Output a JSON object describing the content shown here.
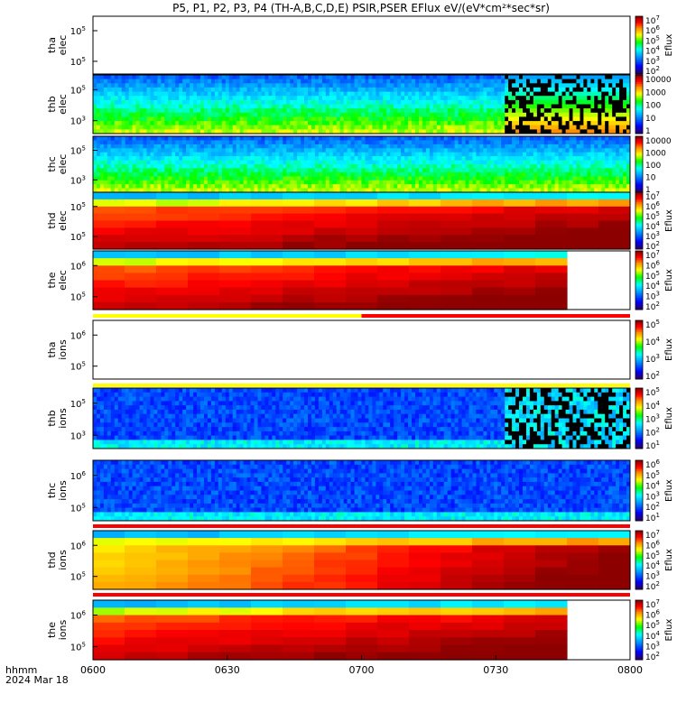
{
  "chart_data": {
    "type": "heatmap",
    "title": "P5, P1, P2, P3, P4 (TH-A,B,C,D,E) PSIR,PSER EFlux eV/(eV*cm²*sec*sr)",
    "x_ticks": [
      "0600",
      "0630",
      "0700",
      "0730",
      "0800"
    ],
    "x_range": [
      "06:00",
      "08:00"
    ],
    "date_label": "2024 Mar 18",
    "time_label": "hhmm",
    "colorbar_label": "Eflux",
    "panels": [
      {
        "id": "tha-elec",
        "ylabel": [
          "tha",
          "elec"
        ],
        "yticks": [
          {
            "mant": "10",
            "exp": "5"
          },
          {
            "mant": "10",
            "exp": "5"
          }
        ],
        "cbar": [
          {
            "mant": "10",
            "exp": "7"
          },
          {
            "mant": "10",
            "exp": "6"
          },
          {
            "mant": "10",
            "exp": "5"
          },
          {
            "mant": "10",
            "exp": "4"
          },
          {
            "mant": "10",
            "exp": "3"
          },
          {
            "mant": "10",
            "exp": "2"
          }
        ],
        "empty": true,
        "style": "fine"
      },
      {
        "id": "thb-elec",
        "ylabel": [
          "thb",
          "elec"
        ],
        "yticks": [
          {
            "mant": "10",
            "exp": "5"
          },
          {
            "mant": "10",
            "exp": "3"
          }
        ],
        "cbar": [
          {
            "mant": "10000",
            "exp": ""
          },
          {
            "mant": "1000",
            "exp": ""
          },
          {
            "mant": "100",
            "exp": ""
          },
          {
            "mant": "10",
            "exp": ""
          },
          {
            "mant": "1",
            "exp": ""
          }
        ],
        "style": "fine",
        "noisy_after": "07:32"
      },
      {
        "id": "thc-elec",
        "ylabel": [
          "thc",
          "elec"
        ],
        "yticks": [
          {
            "mant": "10",
            "exp": "5"
          },
          {
            "mant": "10",
            "exp": "3"
          }
        ],
        "cbar": [
          {
            "mant": "10000",
            "exp": ""
          },
          {
            "mant": "1000",
            "exp": ""
          },
          {
            "mant": "100",
            "exp": ""
          },
          {
            "mant": "10",
            "exp": ""
          },
          {
            "mant": "1",
            "exp": ""
          }
        ],
        "style": "fine"
      },
      {
        "id": "thd-elec",
        "ylabel": [
          "thd",
          "elec"
        ],
        "yticks": [
          {
            "mant": "10",
            "exp": "5"
          },
          {
            "mant": "10",
            "exp": "5"
          }
        ],
        "cbar": [
          {
            "mant": "10",
            "exp": "7"
          },
          {
            "mant": "10",
            "exp": "6"
          },
          {
            "mant": "10",
            "exp": "5"
          },
          {
            "mant": "10",
            "exp": "4"
          },
          {
            "mant": "10",
            "exp": "3"
          },
          {
            "mant": "10",
            "exp": "2"
          }
        ],
        "style": "coarse"
      },
      {
        "id": "the-elec",
        "ylabel": [
          "the",
          "elec"
        ],
        "yticks": [
          {
            "mant": "10",
            "exp": "6"
          },
          {
            "mant": "10",
            "exp": "5"
          }
        ],
        "cbar": [
          {
            "mant": "10",
            "exp": "7"
          },
          {
            "mant": "10",
            "exp": "6"
          },
          {
            "mant": "10",
            "exp": "5"
          },
          {
            "mant": "10",
            "exp": "4"
          },
          {
            "mant": "10",
            "exp": "3"
          },
          {
            "mant": "10",
            "exp": "2"
          }
        ],
        "style": "coarse",
        "data_until": "07:42"
      },
      {
        "id": "tha-ions",
        "ylabel": [
          "tha",
          "ions"
        ],
        "yticks": [
          {
            "mant": "10",
            "exp": "6"
          },
          {
            "mant": "10",
            "exp": "5"
          }
        ],
        "cbar": [
          {
            "mant": "10",
            "exp": "5"
          },
          {
            "mant": "10",
            "exp": "4"
          },
          {
            "mant": "10",
            "exp": "3"
          },
          {
            "mant": "10",
            "exp": "2"
          }
        ],
        "empty": true,
        "style": "fine"
      },
      {
        "id": "thb-ions",
        "ylabel": [
          "thb",
          "ions"
        ],
        "yticks": [
          {
            "mant": "10",
            "exp": "5"
          },
          {
            "mant": "10",
            "exp": "3"
          }
        ],
        "cbar": [
          {
            "mant": "10",
            "exp": "5"
          },
          {
            "mant": "10",
            "exp": "4"
          },
          {
            "mant": "10",
            "exp": "3"
          },
          {
            "mant": "10",
            "exp": "2"
          },
          {
            "mant": "10",
            "exp": "1"
          }
        ],
        "style": "fine",
        "noisy_after": "07:32"
      },
      {
        "id": "thc-ions",
        "ylabel": [
          "thc",
          "ions"
        ],
        "yticks": [
          {
            "mant": "10",
            "exp": "6"
          },
          {
            "mant": "10",
            "exp": "5"
          }
        ],
        "cbar": [
          {
            "mant": "10",
            "exp": "6"
          },
          {
            "mant": "10",
            "exp": "5"
          },
          {
            "mant": "10",
            "exp": "4"
          },
          {
            "mant": "10",
            "exp": "3"
          },
          {
            "mant": "10",
            "exp": "2"
          },
          {
            "mant": "10",
            "exp": "1"
          }
        ],
        "style": "fine"
      },
      {
        "id": "thd-ions",
        "ylabel": [
          "thd",
          "ions"
        ],
        "yticks": [
          {
            "mant": "10",
            "exp": "6"
          },
          {
            "mant": "10",
            "exp": "5"
          }
        ],
        "cbar": [
          {
            "mant": "10",
            "exp": "7"
          },
          {
            "mant": "10",
            "exp": "6"
          },
          {
            "mant": "10",
            "exp": "5"
          },
          {
            "mant": "10",
            "exp": "4"
          },
          {
            "mant": "10",
            "exp": "3"
          },
          {
            "mant": "10",
            "exp": "2"
          }
        ],
        "style": "coarse"
      },
      {
        "id": "the-ions",
        "ylabel": [
          "the",
          "ions"
        ],
        "yticks": [
          {
            "mant": "10",
            "exp": "6"
          },
          {
            "mant": "10",
            "exp": "5"
          }
        ],
        "cbar": [
          {
            "mant": "10",
            "exp": "7"
          },
          {
            "mant": "10",
            "exp": "6"
          },
          {
            "mant": "10",
            "exp": "5"
          },
          {
            "mant": "10",
            "exp": "4"
          },
          {
            "mant": "10",
            "exp": "3"
          },
          {
            "mant": "10",
            "exp": "2"
          }
        ],
        "style": "coarse",
        "data_until": "07:42"
      }
    ],
    "mode_bars": [
      {
        "after_panel": "the-elec",
        "segments": [
          {
            "from": "06:00",
            "to": "07:00",
            "color": "#ffff00"
          },
          {
            "from": "07:00",
            "to": "08:00",
            "color": "#ff0000"
          }
        ]
      },
      {
        "after_panel": "tha-ions",
        "segments": [
          {
            "from": "06:00",
            "to": "08:00",
            "color": "#ffff00"
          }
        ]
      },
      {
        "after_panel": "thc-ions",
        "segments": [
          {
            "from": "06:00",
            "to": "08:00",
            "color": "#ff0000"
          }
        ]
      },
      {
        "after_panel": "thd-ions",
        "segments": [
          {
            "from": "06:00",
            "to": "08:00",
            "color": "#ff0000"
          }
        ]
      }
    ]
  }
}
